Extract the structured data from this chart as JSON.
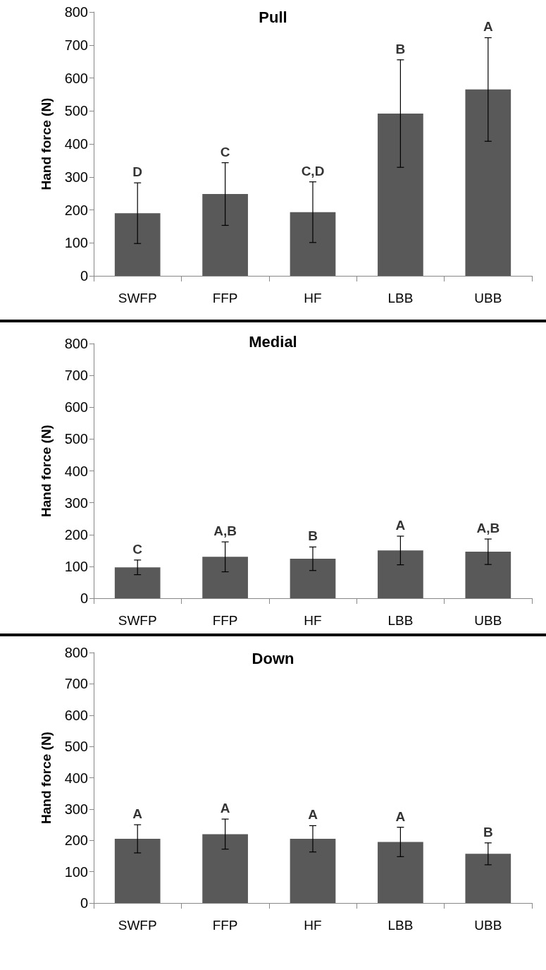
{
  "chart_data": [
    {
      "type": "bar",
      "title": "Pull",
      "ylabel": "Hand force (N)",
      "categories": [
        "SWFP",
        "FFP",
        "HF",
        "LBB",
        "UBB"
      ],
      "series": [
        {
          "color": "#595959",
          "values": [
            190,
            248,
            193,
            492,
            565
          ],
          "errors": [
            92,
            95,
            92,
            163,
            157
          ]
        }
      ],
      "ylim": [
        0,
        800
      ],
      "yticks": [
        0,
        100,
        200,
        300,
        400,
        500,
        600,
        700,
        800
      ],
      "annotations": [
        {
          "text": "D",
          "x": "SWFP",
          "y": 282
        },
        {
          "text": "C",
          "x": "FFP",
          "y": 343
        },
        {
          "text": "C,D",
          "x": "HF",
          "y": 285
        },
        {
          "text": "B",
          "x": "LBB",
          "y": 655
        },
        {
          "text": "A",
          "x": "UBB",
          "y": 722
        }
      ]
    },
    {
      "type": "bar",
      "title": "Medial",
      "ylabel": "Hand force (N)",
      "categories": [
        "SWFP",
        "FFP",
        "HF",
        "LBB",
        "UBB"
      ],
      "series": [
        {
          "color": "#595959",
          "values": [
            97,
            130,
            124,
            150,
            146
          ],
          "errors": [
            23,
            47,
            37,
            45,
            40
          ]
        }
      ],
      "ylim": [
        0,
        800
      ],
      "yticks": [
        0,
        100,
        200,
        300,
        400,
        500,
        600,
        700,
        800
      ],
      "annotations": [
        {
          "text": "C",
          "x": "SWFP",
          "y": 120
        },
        {
          "text": "A,B",
          "x": "FFP",
          "y": 177
        },
        {
          "text": "B",
          "x": "HF",
          "y": 161
        },
        {
          "text": "A",
          "x": "LBB",
          "y": 195
        },
        {
          "text": "A,B",
          "x": "UBB",
          "y": 186
        }
      ]
    },
    {
      "type": "bar",
      "title": "Down",
      "ylabel": "Hand force (N)",
      "categories": [
        "SWFP",
        "FFP",
        "HF",
        "LBB",
        "UBB"
      ],
      "series": [
        {
          "color": "#595959",
          "values": [
            205,
            220,
            205,
            195,
            157
          ],
          "errors": [
            45,
            48,
            42,
            47,
            35
          ]
        }
      ],
      "ylim": [
        0,
        800
      ],
      "yticks": [
        0,
        100,
        200,
        300,
        400,
        500,
        600,
        700,
        800
      ],
      "annotations": [
        {
          "text": "A",
          "x": "SWFP",
          "y": 250
        },
        {
          "text": "A",
          "x": "FFP",
          "y": 268
        },
        {
          "text": "A",
          "x": "HF",
          "y": 247
        },
        {
          "text": "A",
          "x": "LBB",
          "y": 242
        },
        {
          "text": "B",
          "x": "UBB",
          "y": 192
        }
      ]
    }
  ]
}
